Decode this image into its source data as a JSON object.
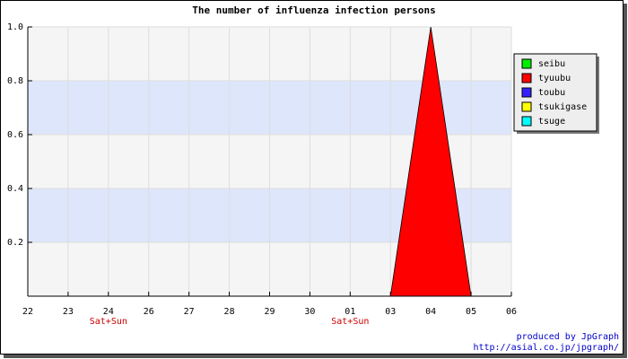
{
  "chart_data": {
    "type": "area",
    "title": "The number of influenza infection persons",
    "categories": [
      "22",
      "23",
      "24",
      "26",
      "27",
      "28",
      "29",
      "30",
      "01",
      "03",
      "04",
      "05",
      "06"
    ],
    "sublabels": [
      null,
      null,
      "Sat+Sun",
      null,
      null,
      null,
      null,
      null,
      "Sat+Sun",
      null,
      null,
      null,
      null
    ],
    "sublabel_color": "#cc0000",
    "series": [
      {
        "name": "seibu",
        "color": "#00ee00",
        "values": [
          0,
          0,
          0,
          0,
          0,
          0,
          0,
          0,
          0,
          0,
          0,
          0,
          0
        ]
      },
      {
        "name": "tyuubu",
        "color": "#ff0000",
        "values": [
          0,
          0,
          0,
          0,
          0,
          0,
          0,
          0,
          0,
          0,
          1,
          0,
          0
        ]
      },
      {
        "name": "toubu",
        "color": "#3322ff",
        "values": [
          0,
          0,
          0,
          0,
          0,
          0,
          0,
          0,
          0,
          0,
          0,
          0,
          0
        ]
      },
      {
        "name": "tsukigase",
        "color": "#ffff00",
        "values": [
          0,
          0,
          0,
          0,
          0,
          0,
          0,
          0,
          0,
          0,
          0,
          0,
          0
        ]
      },
      {
        "name": "tsuge",
        "color": "#00ffff",
        "values": [
          0,
          0,
          0,
          0,
          0,
          0,
          0,
          0,
          0,
          0,
          0,
          0,
          0
        ]
      }
    ],
    "ylim": [
      0,
      1
    ],
    "yticks": [
      0.2,
      0.4,
      0.6,
      0.8,
      {
        "value": 1,
        "label": "1.0"
      }
    ],
    "grid": true,
    "band_color": "#dde6fb",
    "legend": "right",
    "credits": [
      "produced by JpGraph",
      "http://asial.co.jp/jpgraph/"
    ]
  }
}
